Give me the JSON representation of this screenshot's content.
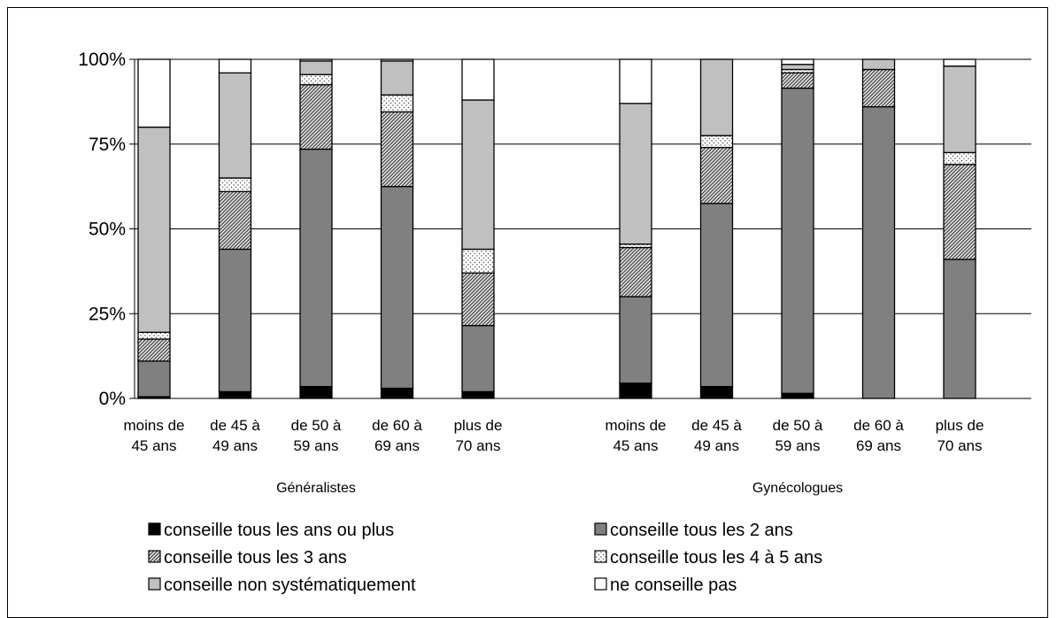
{
  "chart_data": {
    "type": "bar",
    "stacked": true,
    "normalized_percent": true,
    "ylim": [
      0,
      100
    ],
    "yticks": [
      "0%",
      "25%",
      "50%",
      "75%",
      "100%"
    ],
    "grid": true,
    "legend_position": "bottom",
    "groups": [
      {
        "name": "Généralistes",
        "categories": [
          [
            "moins de",
            "45 ans"
          ],
          [
            "de 45 à",
            "49 ans"
          ],
          [
            "de 50 à",
            "59 ans"
          ],
          [
            "de 60 à",
            "69 ans"
          ],
          [
            "plus de",
            "70 ans"
          ]
        ],
        "series_values": [
          [
            0.5,
            2.0,
            3.5,
            3.0,
            2.0
          ],
          [
            10.5,
            42.0,
            70.0,
            59.5,
            19.5
          ],
          [
            6.5,
            17.0,
            19.0,
            22.0,
            15.5
          ],
          [
            2.0,
            4.0,
            3.0,
            5.0,
            7.0
          ],
          [
            60.5,
            31.0,
            4.0,
            10.0,
            44.0
          ],
          [
            20.0,
            4.0,
            0.5,
            0.5,
            12.0
          ]
        ]
      },
      {
        "name": "Gynécologues",
        "categories": [
          [
            "moins de",
            "45 ans"
          ],
          [
            "de 45 à",
            "49 ans"
          ],
          [
            "de 50 à",
            "59 ans"
          ],
          [
            "de 60 à",
            "69 ans"
          ],
          [
            "plus de",
            "70 ans"
          ]
        ],
        "series_values": [
          [
            4.5,
            3.5,
            1.5,
            0.0,
            0.0
          ],
          [
            25.5,
            54.0,
            90.0,
            86.0,
            41.0
          ],
          [
            14.5,
            16.5,
            4.5,
            11.0,
            28.0
          ],
          [
            1.0,
            3.5,
            1.0,
            0.0,
            3.5
          ],
          [
            41.5,
            22.5,
            1.5,
            3.0,
            25.5
          ],
          [
            13.0,
            0.0,
            1.5,
            0.0,
            2.0
          ]
        ]
      }
    ],
    "series": [
      {
        "name": "conseille tous les ans ou plus",
        "fill": "#000000",
        "pattern": "solid"
      },
      {
        "name": "conseille tous les 2 ans",
        "fill": "#808080",
        "pattern": "solid"
      },
      {
        "name": "conseille tous les 3 ans",
        "fill": "#808080",
        "pattern": "hatch"
      },
      {
        "name": "conseille tous les 4 à 5 ans",
        "fill": "#ffffff",
        "pattern": "dots"
      },
      {
        "name": "conseille non systématiquement",
        "fill": "#c0c0c0",
        "pattern": "solid"
      },
      {
        "name": "ne conseille pas",
        "fill": "#ffffff",
        "pattern": "solid"
      }
    ]
  }
}
